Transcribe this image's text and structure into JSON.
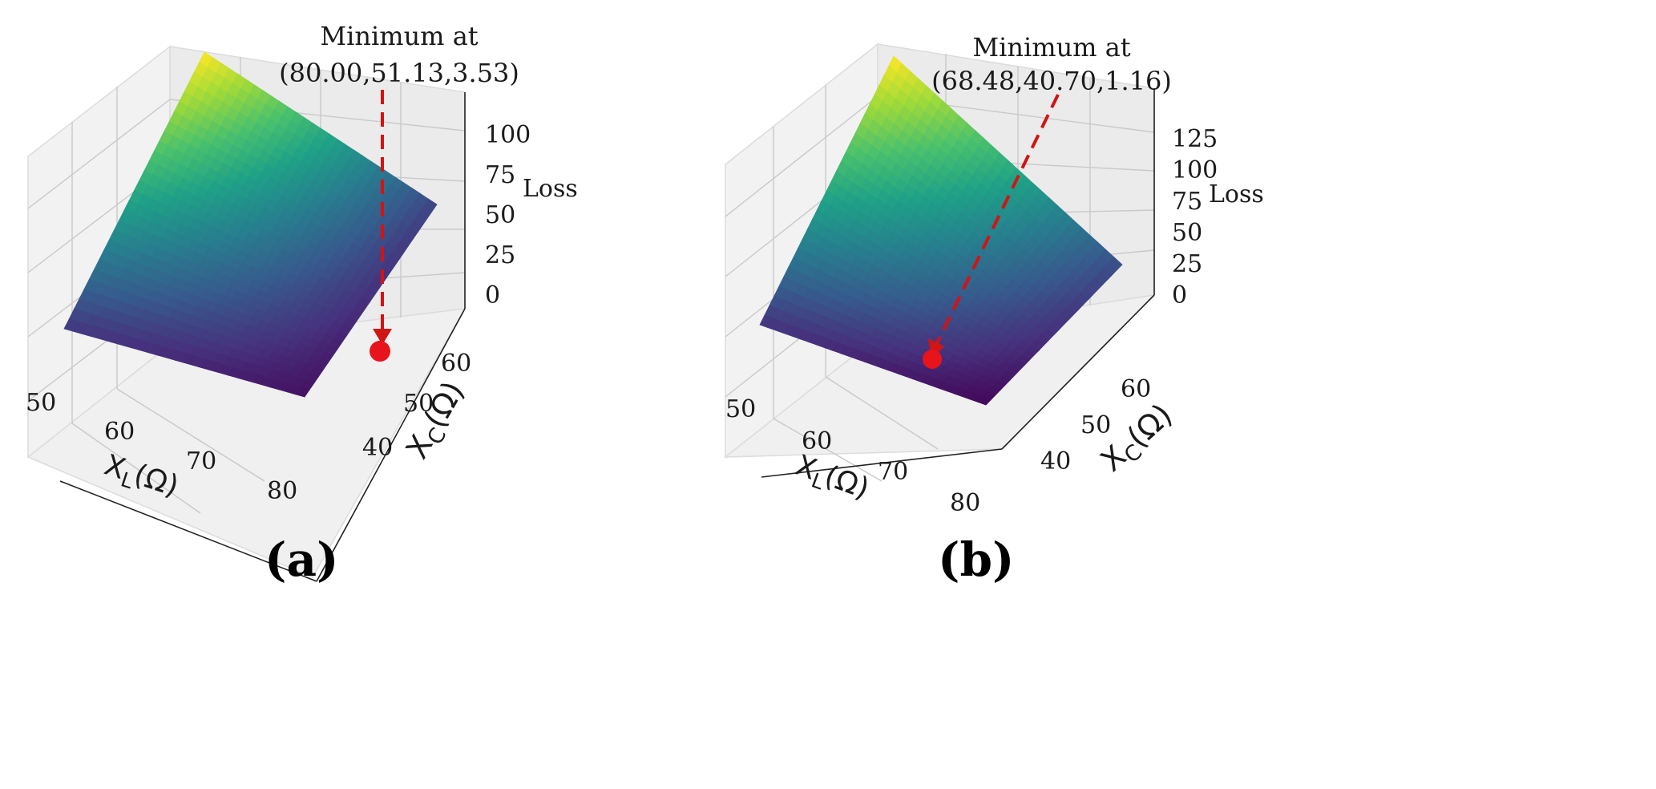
{
  "chart_data": [
    {
      "id": "a",
      "type": "surface3d",
      "panel_label": "(a)",
      "xlabel": "X_L(Ω)",
      "ylabel": "X_C(Ω)",
      "zlabel": "Loss",
      "x_ticks": [
        "50",
        "60",
        "70",
        "80"
      ],
      "y_ticks": [
        "40",
        "50",
        "60"
      ],
      "z_ticks": [
        "0",
        "25",
        "50",
        "75",
        "100"
      ],
      "xlim": [
        48,
        80
      ],
      "ylim": [
        36,
        68
      ],
      "zlim": [
        0,
        120
      ],
      "colormap": "viridis",
      "annotation": {
        "line1": "Minimum at",
        "line2": "(80.00,51.13,3.53)"
      },
      "minimum": {
        "x": 80.0,
        "y": 51.13,
        "z": 3.53
      }
    },
    {
      "id": "b",
      "type": "surface3d",
      "panel_label": "(b)",
      "xlabel": "X_L(Ω)",
      "ylabel": "X_C(Ω)",
      "zlabel": "Loss",
      "x_ticks": [
        "50",
        "60",
        "70",
        "80"
      ],
      "y_ticks": [
        "40",
        "50",
        "60"
      ],
      "z_ticks": [
        "0",
        "25",
        "50",
        "75",
        "100",
        "125"
      ],
      "xlim": [
        48,
        80
      ],
      "ylim": [
        36,
        68
      ],
      "zlim": [
        0,
        140
      ],
      "colormap": "viridis",
      "annotation": {
        "line1": "Minimum at",
        "line2": "(68.48,40.70,1.16)"
      },
      "minimum": {
        "x": 68.48,
        "y": 40.7,
        "z": 1.16
      }
    }
  ],
  "colors": {
    "viridis_stops": [
      "#440154",
      "#46327e",
      "#365c8d",
      "#277f8e",
      "#1fa187",
      "#4ac16d",
      "#a0da39",
      "#fde725"
    ],
    "marker": "#e8141c",
    "arrow": "#d11414"
  }
}
